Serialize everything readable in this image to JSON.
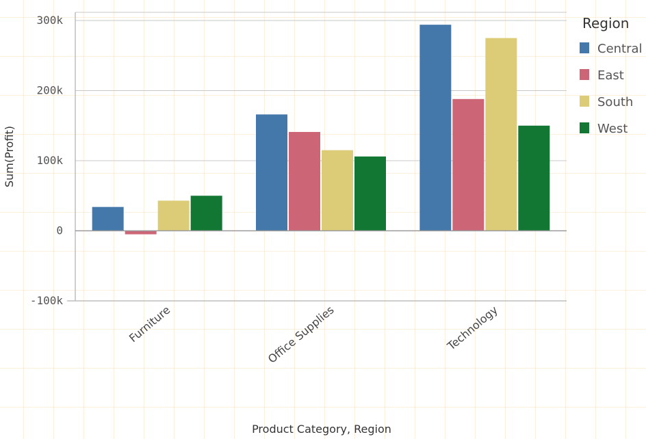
{
  "chart_data": {
    "type": "bar",
    "categories": [
      "Furniture",
      "Office Supplies",
      "Technology"
    ],
    "series": [
      {
        "name": "Central",
        "color": "#4477aa",
        "values": [
          34000,
          166000,
          294000
        ]
      },
      {
        "name": "East",
        "color": "#cc6677",
        "values": [
          -5000,
          141000,
          188000
        ]
      },
      {
        "name": "South",
        "color": "#ddcc77",
        "values": [
          43000,
          115000,
          275000
        ]
      },
      {
        "name": "West",
        "color": "#117733",
        "values": [
          50000,
          106000,
          150000
        ]
      }
    ],
    "title": "",
    "xlabel": "Product Category,  Region",
    "ylabel": "Sum(Profit)",
    "ylim": [
      -100000,
      300000
    ],
    "yticks": [
      {
        "value": -100000,
        "label": "-100k"
      },
      {
        "value": 0,
        "label": "0"
      },
      {
        "value": 100000,
        "label": "100k"
      },
      {
        "value": 200000,
        "label": "200k"
      },
      {
        "value": 300000,
        "label": "300k"
      }
    ],
    "legend": {
      "title": "Region",
      "position": "top-right"
    },
    "grid": true
  }
}
